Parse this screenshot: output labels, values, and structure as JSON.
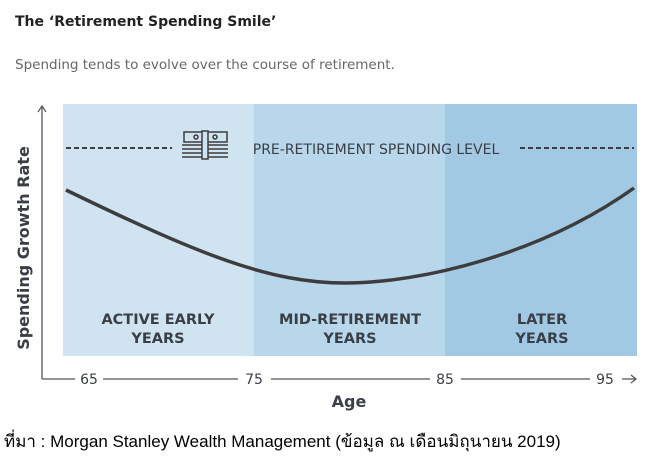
{
  "title": "The ‘Retirement Spending Smile’",
  "subtitle": "Spending tends to evolve over the course of retirement.",
  "source": "ที่มา : Morgan Stanley Wealth Management (ข้อมูล ณ เดือนมิถุนายน 2019)",
  "chart_data": {
    "type": "line",
    "xlabel": "Age",
    "ylabel": "Spending Growth Rate",
    "x_ticks": [
      "65",
      "75",
      "85",
      "95"
    ],
    "xlim": [
      65,
      95
    ],
    "reference_line": {
      "label": "PRE-RETIREMENT SPENDING LEVEL",
      "style": "dashed",
      "icon": "money-stack-icon"
    },
    "phases": [
      {
        "line1": "ACTIVE EARLY",
        "line2": "YEARS",
        "range": [
          65,
          75
        ],
        "color": "#d0e3f1"
      },
      {
        "line1": "MID-RETIREMENT",
        "line2": "YEARS",
        "range": [
          75,
          85
        ],
        "color": "#b9d7eb"
      },
      {
        "line1": "LATER",
        "line2": "YEARS",
        "range": [
          85,
          95
        ],
        "color": "#a2c9e3"
      }
    ],
    "curve_shape": "smile (U-shaped), minimum near age 80",
    "line_color": "#3d3d3d"
  }
}
